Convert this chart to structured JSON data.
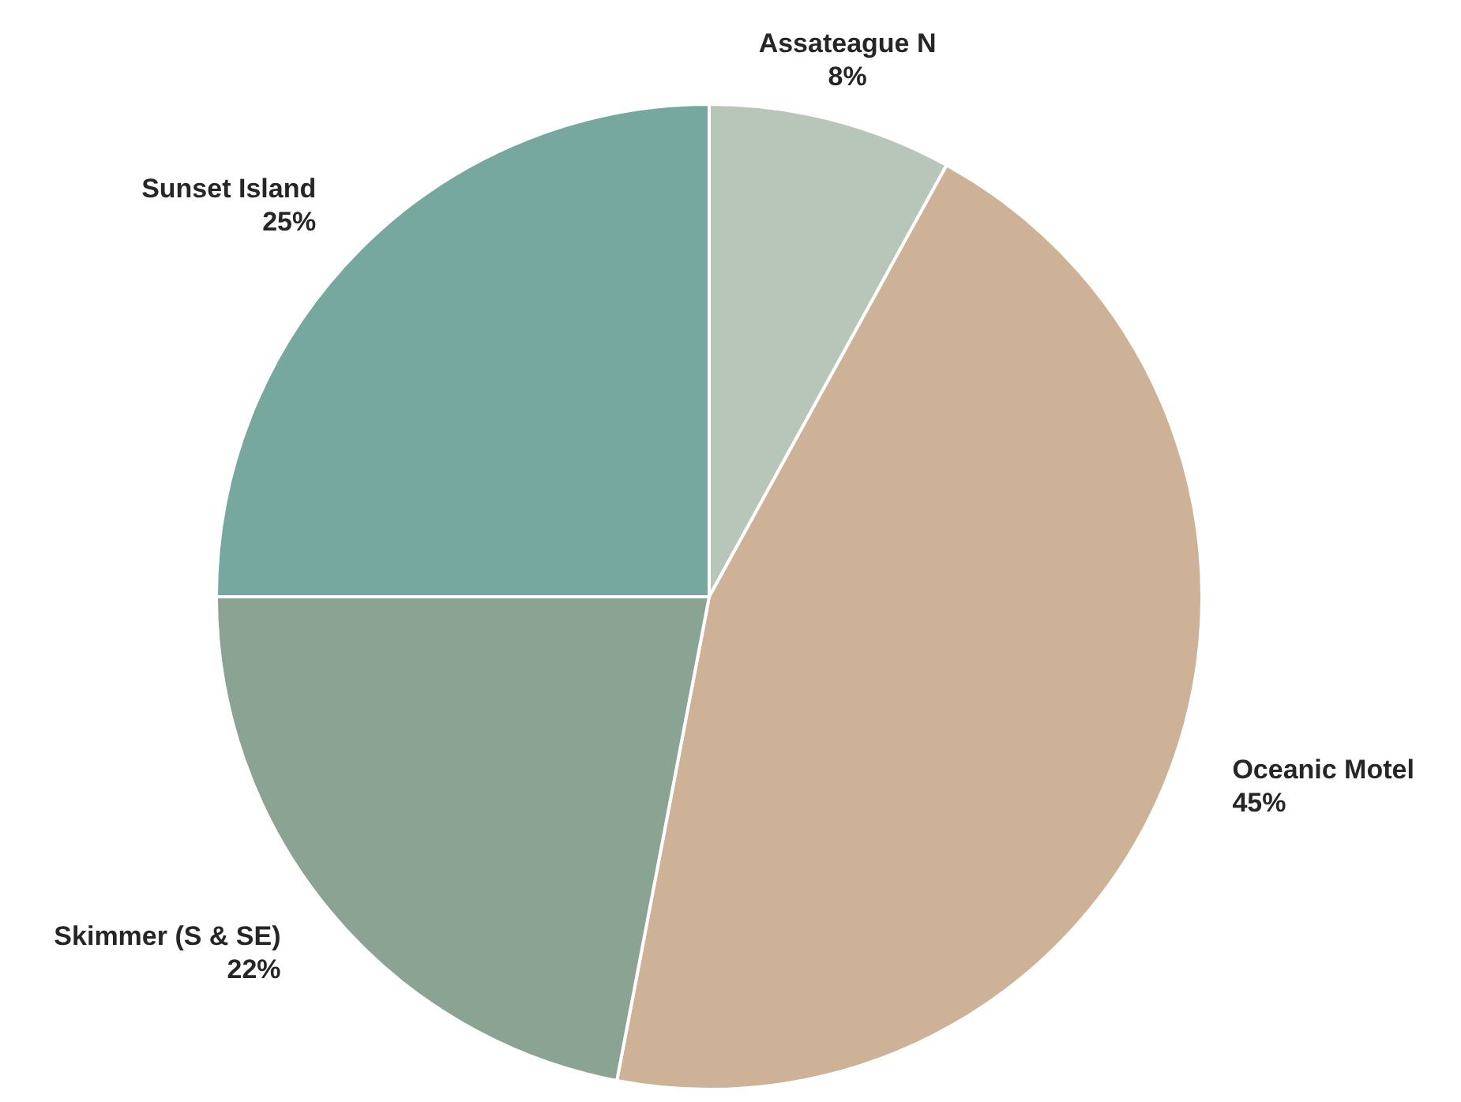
{
  "chart_data": {
    "type": "pie",
    "categories": [
      "Assateague N",
      "Oceanic Motel",
      "Skimmer (S & SE)",
      "Sunset Island"
    ],
    "values": [
      8,
      45,
      22,
      25
    ],
    "colors": [
      "#b8c6b9",
      "#cdb298",
      "#8aa392",
      "#76a8a0"
    ],
    "value_labels": [
      "8%",
      "45%",
      "22%",
      "25%"
    ]
  }
}
